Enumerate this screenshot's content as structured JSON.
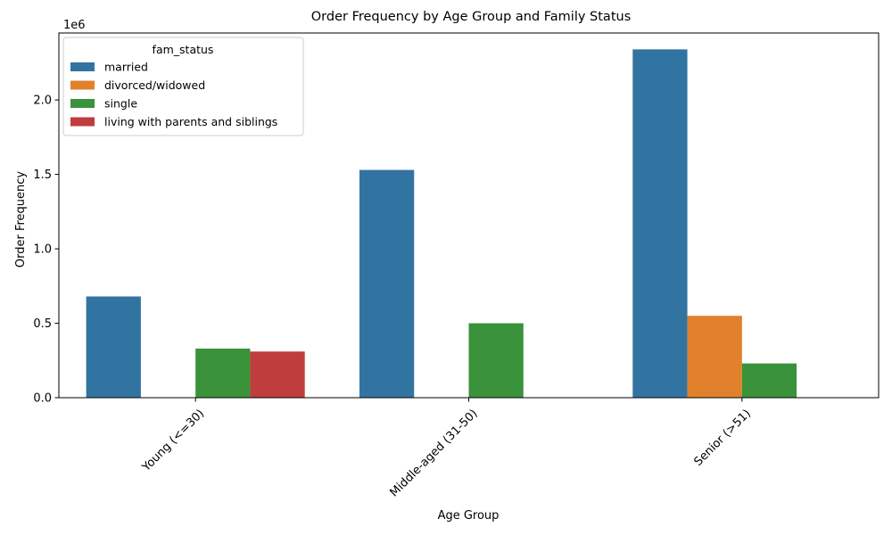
{
  "chart_data": {
    "type": "bar",
    "title": "Order Frequency by Age Group and Family Status",
    "xlabel": "Age Group",
    "ylabel": "Order Frequency",
    "y_scale_note": "1e6",
    "ylim": [
      0,
      2.45
    ],
    "y_ticks": [
      0.0,
      0.5,
      1.0,
      1.5,
      2.0
    ],
    "y_tick_labels": [
      "0.0",
      "0.5",
      "1.0",
      "1.5",
      "2.0"
    ],
    "grid": false,
    "categories": [
      "Young (<=30)",
      "Middle-aged (31-50)",
      "Senior (>51)"
    ],
    "legend": {
      "title": "fam_status",
      "placement": "top-left"
    },
    "series": [
      {
        "name": "married",
        "color": "#3274a1",
        "values": [
          0.68,
          1.53,
          2.34
        ]
      },
      {
        "name": "divorced/widowed",
        "color": "#e1812c",
        "values": [
          null,
          null,
          0.55
        ]
      },
      {
        "name": "single",
        "color": "#3a923a",
        "values": [
          0.33,
          0.5,
          0.23
        ]
      },
      {
        "name": "living with parents and siblings",
        "color": "#c03d3e",
        "values": [
          0.31,
          null,
          null
        ]
      }
    ]
  }
}
